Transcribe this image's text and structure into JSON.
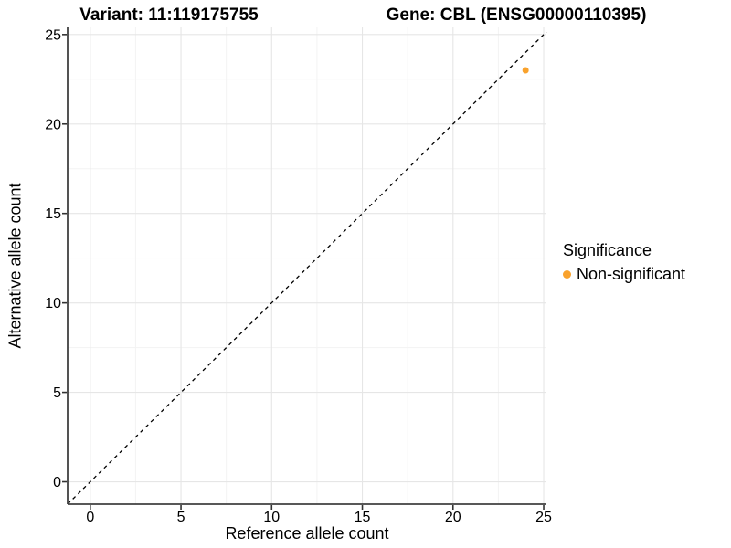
{
  "titles": {
    "variant": "Variant: 11:119175755",
    "gene": "Gene: CBL (ENSG00000110395)"
  },
  "chart_data": {
    "type": "scatter",
    "title_left": "Variant: 11:119175755",
    "title_right": "Gene: CBL (ENSG00000110395)",
    "xlabel": "Reference allele count",
    "ylabel": "Alternative allele count",
    "xlim": [
      -1.25,
      25.15
    ],
    "ylim": [
      -1.25,
      25.4
    ],
    "xticks": [
      0,
      5,
      10,
      15,
      20,
      25
    ],
    "yticks": [
      0,
      5,
      10,
      15,
      20,
      25
    ],
    "minor_ticks_x": [
      2.5,
      7.5,
      12.5,
      17.5,
      22.5
    ],
    "minor_ticks_y": [
      2.5,
      7.5,
      12.5,
      17.5,
      22.5
    ],
    "grid": "major+minor",
    "points": [
      {
        "x": 24,
        "y": 23,
        "series": "Non-significant",
        "color": "#F9A22C"
      }
    ],
    "reference_line": {
      "type": "identity",
      "slope": 1,
      "intercept": 0,
      "style": "dashed",
      "color": "#000000"
    },
    "legend": {
      "title": "Significance",
      "position": "right",
      "items": [
        {
          "label": "Non-significant",
          "color": "#F9A22C"
        }
      ]
    }
  },
  "colors": {
    "background": "#FFFFFF",
    "axis_line": "#404040",
    "tick_mark": "#333333",
    "tick_label": "#000000",
    "grid_major": "#E6E6E6",
    "grid_minor": "#F3F3F3",
    "point": "#F9A22C"
  }
}
